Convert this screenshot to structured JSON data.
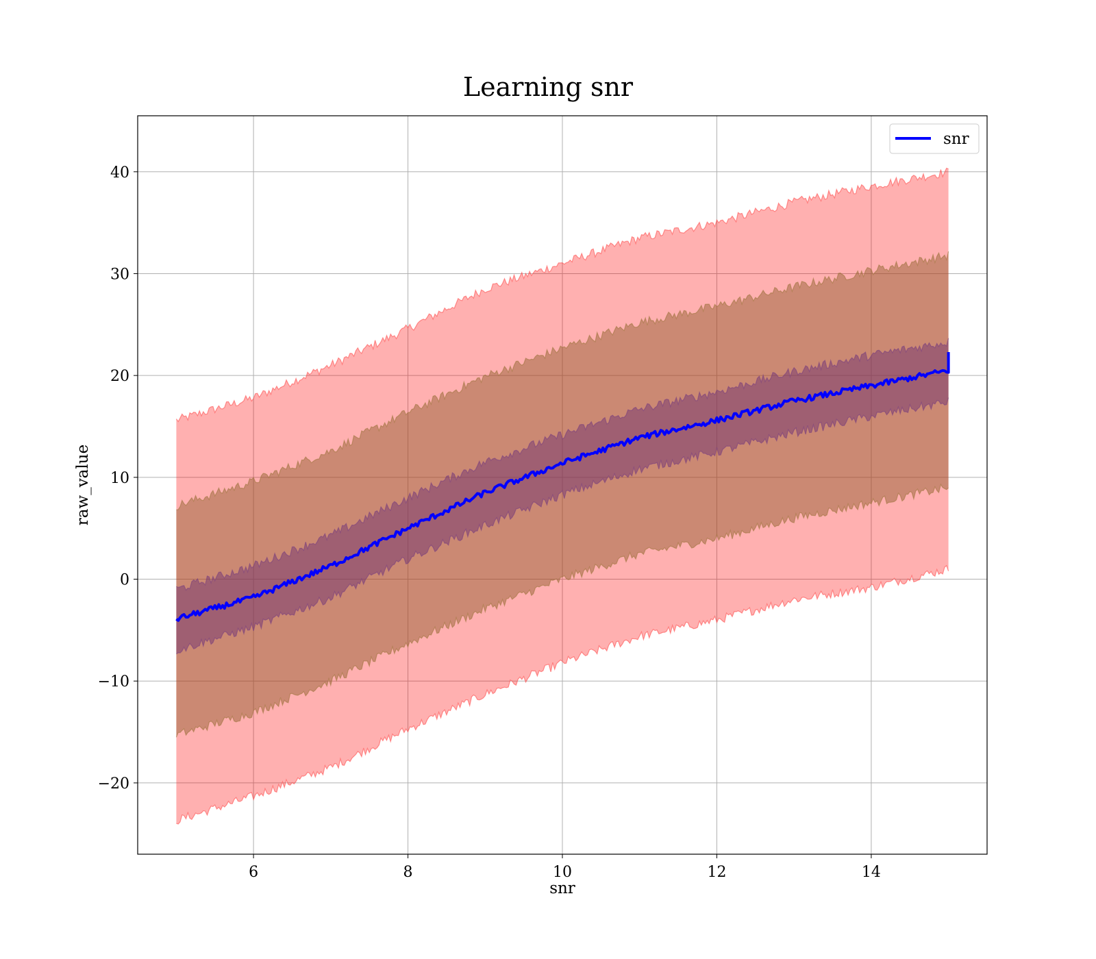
{
  "chart_data": {
    "type": "line",
    "title": "Learning snr",
    "xlabel": "snr",
    "ylabel": "raw_value",
    "xlim": [
      4.5,
      15.5
    ],
    "ylim": [
      -27,
      45.5
    ],
    "xticks": [
      6,
      8,
      10,
      12,
      14
    ],
    "xtick_labels": [
      "6",
      "8",
      "10",
      "12",
      "14"
    ],
    "yticks": [
      -20,
      -10,
      0,
      10,
      20,
      30,
      40
    ],
    "ytick_labels": [
      "−20",
      "−10",
      "0",
      "10",
      "20",
      "30",
      "40"
    ],
    "grid": true,
    "legend": {
      "placement": "top-right",
      "entries": [
        "snr"
      ]
    },
    "colors": {
      "line": "#0000ff",
      "band_outer": "#ff0000",
      "band_middle": "#8b5a2b",
      "band_inner": "#6a2c70"
    },
    "x": [
      5,
      6,
      7,
      8,
      9,
      10,
      11,
      12,
      13,
      14,
      15
    ],
    "series": [
      {
        "name": "snr",
        "values": [
          -3.9,
          -1.8,
          1.3,
          5.0,
          8.5,
          11.4,
          13.9,
          15.6,
          17.5,
          19.0,
          20.5
        ]
      }
    ],
    "bands": [
      {
        "lower": [
          -23.7,
          -21.3,
          -18.5,
          -14.7,
          -11.3,
          -8.2,
          -5.6,
          -4.0,
          -2.0,
          -0.8,
          1.0
        ],
        "upper": [
          15.6,
          17.8,
          21.0,
          24.6,
          28.5,
          31.0,
          33.5,
          35.0,
          37.0,
          38.6,
          40.0
        ]
      },
      {
        "lower": [
          -15.3,
          -13.1,
          -10.0,
          -6.3,
          -2.9,
          0.0,
          2.5,
          4.0,
          6.0,
          7.5,
          9.0
        ],
        "upper": [
          7.2,
          9.6,
          12.6,
          16.4,
          19.9,
          22.7,
          25.2,
          26.8,
          28.7,
          30.3,
          31.8
        ]
      },
      {
        "lower": [
          -7.0,
          -4.7,
          -1.8,
          2.0,
          5.3,
          8.3,
          10.8,
          12.5,
          14.4,
          16.0,
          17.4
        ],
        "upper": [
          -1.0,
          1.3,
          4.3,
          8.0,
          11.5,
          14.2,
          16.7,
          18.4,
          20.4,
          22.0,
          23.3
        ]
      }
    ]
  }
}
